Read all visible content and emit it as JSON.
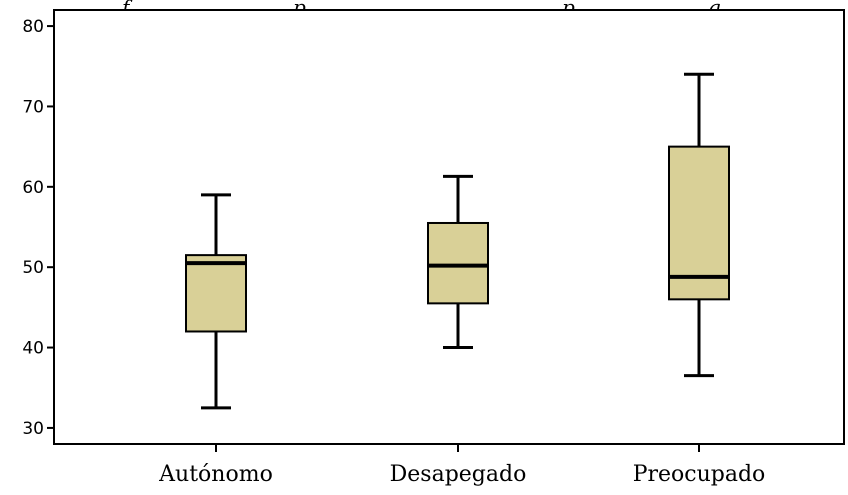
{
  "chart_data": {
    "type": "boxplot",
    "title": "",
    "top_text_fragments": [
      "f",
      "p",
      "p",
      "g"
    ],
    "categories": [
      "Autónomo",
      "Desapegado",
      "Preocupado"
    ],
    "boxes": [
      {
        "category": "Autónomo",
        "whisker_low": 32.5,
        "q1": 42,
        "median": 50.5,
        "q3": 51.5,
        "whisker_high": 59
      },
      {
        "category": "Desapegado",
        "whisker_low": 40,
        "q1": 45.5,
        "median": 50.2,
        "q3": 55.5,
        "whisker_high": 61.3
      },
      {
        "category": "Preocupado",
        "whisker_low": 36.5,
        "q1": 46,
        "median": 48.8,
        "q3": 65,
        "whisker_high": 74
      }
    ],
    "y_ticks": [
      30,
      40,
      50,
      60,
      70,
      80
    ],
    "ylim": [
      28,
      82
    ],
    "grid": false,
    "colors": {
      "box_fill": "#d9d097",
      "stroke": "#000000",
      "background": "#ffffff"
    }
  }
}
